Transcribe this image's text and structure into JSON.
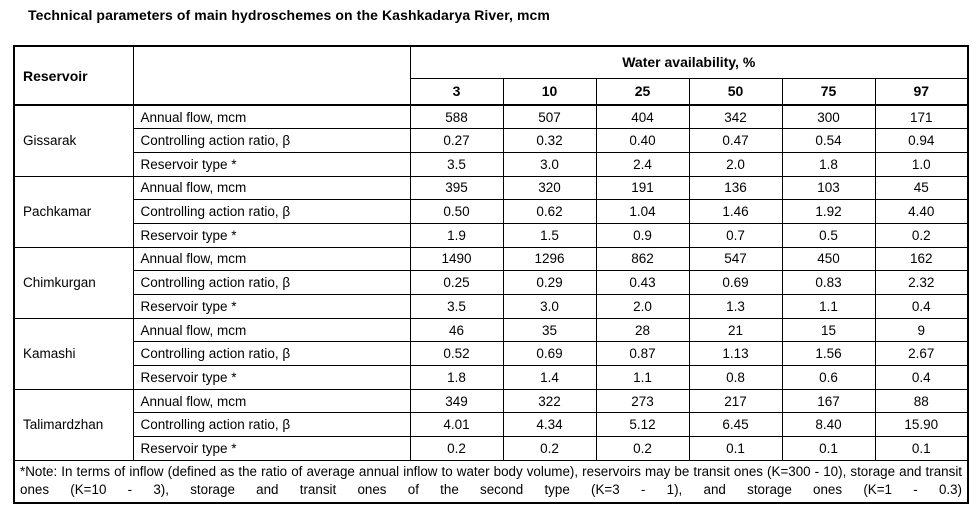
{
  "title": "Technical parameters of main hydroschemes on the Kashkadarya River, mcm",
  "table": {
    "col1_header": "Reservoir",
    "group_header": "Water availability, %",
    "availability_levels": [
      "3",
      "10",
      "25",
      "50",
      "75",
      "97"
    ],
    "row_labels": [
      "Annual flow, mcm",
      "Controlling action ratio, β",
      "Reservoir type *"
    ],
    "reservoirs": [
      {
        "name": "Gissarak",
        "rows": [
          [
            "588",
            "507",
            "404",
            "342",
            "300",
            "171"
          ],
          [
            "0.27",
            "0.32",
            "0.40",
            "0.47",
            "0.54",
            "0.94"
          ],
          [
            "3.5",
            "3.0",
            "2.4",
            "2.0",
            "1.8",
            "1.0"
          ]
        ]
      },
      {
        "name": "Pachkamar",
        "rows": [
          [
            "395",
            "320",
            "191",
            "136",
            "103",
            "45"
          ],
          [
            "0.50",
            "0.62",
            "1.04",
            "1.46",
            "1.92",
            "4.40"
          ],
          [
            "1.9",
            "1.5",
            "0.9",
            "0.7",
            "0.5",
            "0.2"
          ]
        ]
      },
      {
        "name": "Chimkurgan",
        "rows": [
          [
            "1490",
            "1296",
            "862",
            "547",
            "450",
            "162"
          ],
          [
            "0.25",
            "0.29",
            "0.43",
            "0.69",
            "0.83",
            "2.32"
          ],
          [
            "3.5",
            "3.0",
            "2.0",
            "1.3",
            "1.1",
            "0.4"
          ]
        ]
      },
      {
        "name": "Kamashi",
        "rows": [
          [
            "46",
            "35",
            "28",
            "21",
            "15",
            "9"
          ],
          [
            "0.52",
            "0.69",
            "0.87",
            "1.13",
            "1.56",
            "2.67"
          ],
          [
            "1.8",
            "1.4",
            "1.1",
            "0.8",
            "0.6",
            "0.4"
          ]
        ]
      },
      {
        "name": "Talimardzhan",
        "rows": [
          [
            "349",
            "322",
            "273",
            "217",
            "167",
            "88"
          ],
          [
            "4.01",
            "4.34",
            "5.12",
            "6.45",
            "8.40",
            "15.90"
          ],
          [
            "0.2",
            "0.2",
            "0.2",
            "0.1",
            "0.1",
            "0.1"
          ]
        ]
      }
    ],
    "note": "*Note: In terms of inflow (defined as the ratio of average annual inflow to water body volume), reservoirs may be transit ones (K=300 - 10), storage and transit ones (K=10 - 3), storage and transit ones of the second type (K=3 - 1), and storage ones (K=1 - 0.3)"
  }
}
